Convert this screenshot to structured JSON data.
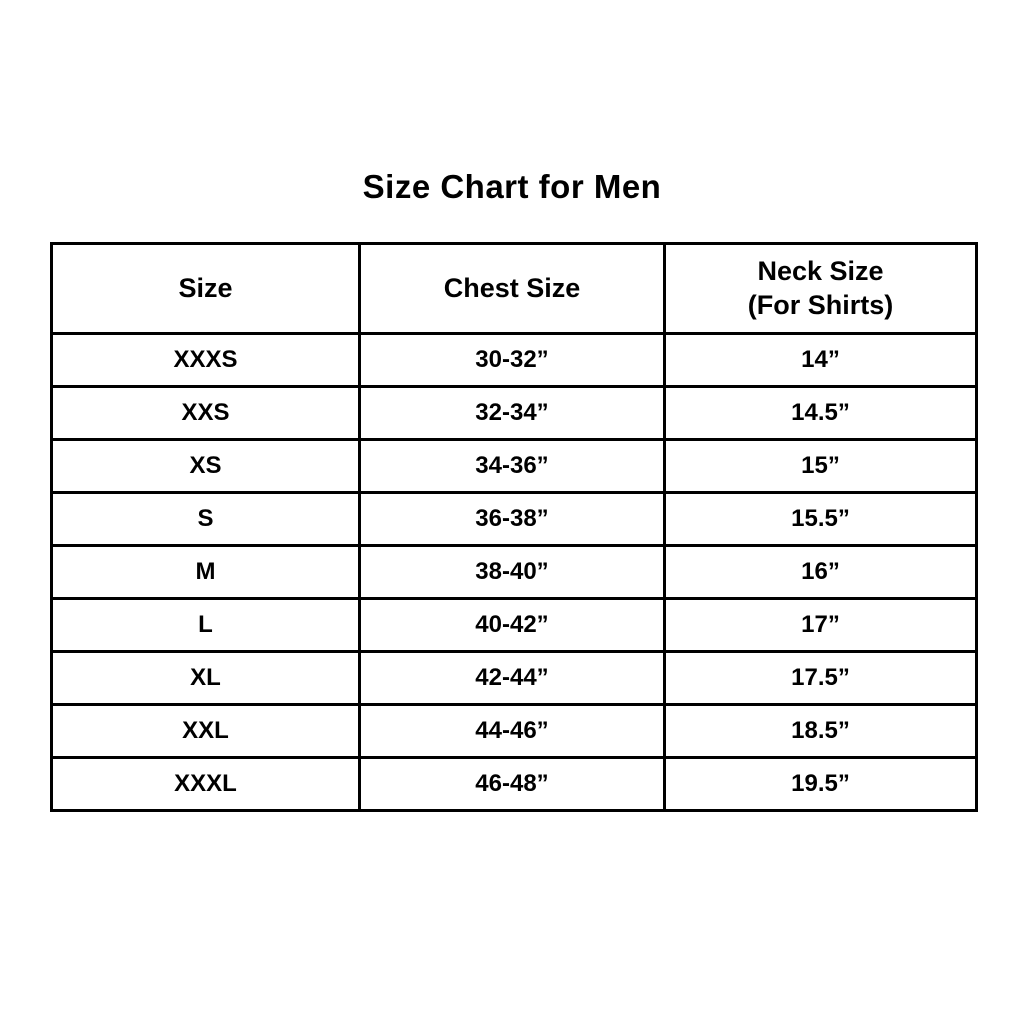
{
  "page": {
    "background_color": "#ffffff",
    "text_color": "#000000",
    "border_color": "#000000"
  },
  "title": "Size Chart for Men",
  "table": {
    "headers": [
      "Size",
      "Chest Size",
      "Neck Size"
    ],
    "header_sub": "(For Shirts)",
    "rows": [
      [
        "XXXS",
        "30-32”",
        "14”"
      ],
      [
        "XXS",
        "32-34”",
        "14.5”"
      ],
      [
        "XS",
        "34-36”",
        "15”"
      ],
      [
        "S",
        "36-38”",
        "15.5”"
      ],
      [
        "M",
        "38-40”",
        "16”"
      ],
      [
        "L",
        "40-42”",
        "17”"
      ],
      [
        "XL",
        "42-44”",
        "17.5”"
      ],
      [
        "XXL",
        "44-46”",
        "18.5”"
      ],
      [
        "XXXL",
        "46-48”",
        "19.5”"
      ]
    ]
  },
  "chart_data": {
    "type": "table",
    "title": "Size Chart for Men",
    "columns": [
      "Size",
      "Chest Size",
      "Neck Size (For Shirts)"
    ],
    "rows": [
      [
        "XXXS",
        "30-32”",
        "14”"
      ],
      [
        "XXS",
        "32-34”",
        "14.5”"
      ],
      [
        "XS",
        "34-36”",
        "15”"
      ],
      [
        "S",
        "36-38”",
        "15.5”"
      ],
      [
        "M",
        "38-40”",
        "16”"
      ],
      [
        "L",
        "40-42”",
        "17”"
      ],
      [
        "XL",
        "42-44”",
        "17.5”"
      ],
      [
        "XXL",
        "44-46”",
        "18.5”"
      ],
      [
        "XXXL",
        "46-48”",
        "19.5”"
      ]
    ]
  }
}
